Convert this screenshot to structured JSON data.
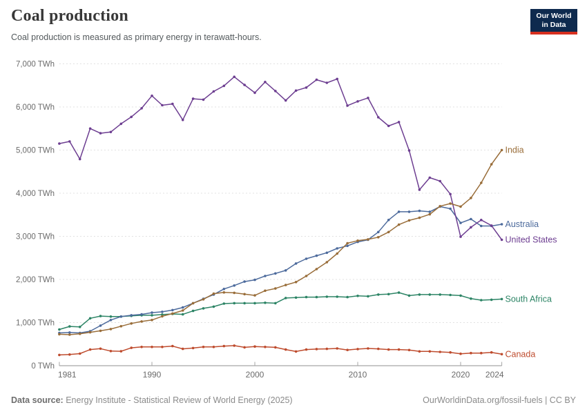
{
  "header": {
    "title": "Coal production",
    "subtitle": "Coal production is measured as primary energy in terawatt-hours.",
    "logo": {
      "line1": "Our World",
      "line2": "in Data",
      "bg_color": "#0e2a4e",
      "accent_color": "#d7301f"
    }
  },
  "footer": {
    "source_label": "Data source:",
    "source_text": " Energy Institute - Statistical Review of World Energy (2025)",
    "link_text": "OurWorldinData.org/fossil-fuels | CC BY"
  },
  "chart_data": {
    "type": "line",
    "unit_suffix": " TWh",
    "ylim": [
      0,
      7000
    ],
    "ytick_step": 1000,
    "xticks": [
      1981,
      1990,
      2000,
      2010,
      2020,
      2024
    ],
    "grid": "horizontal-dashed",
    "legend_position": "right-of-line-ends",
    "x": [
      1981,
      1982,
      1983,
      1984,
      1985,
      1986,
      1987,
      1988,
      1989,
      1990,
      1991,
      1992,
      1993,
      1994,
      1995,
      1996,
      1997,
      1998,
      1999,
      2000,
      2001,
      2002,
      2003,
      2004,
      2005,
      2006,
      2007,
      2008,
      2009,
      2010,
      2011,
      2012,
      2013,
      2014,
      2015,
      2016,
      2017,
      2018,
      2019,
      2020,
      2021,
      2022,
      2023,
      2024
    ],
    "series": [
      {
        "name": "Canada",
        "color": "#BE4B2D",
        "values": [
          250,
          260,
          280,
          375,
          395,
          340,
          335,
          415,
          435,
          435,
          435,
          455,
          390,
          410,
          435,
          435,
          455,
          465,
          425,
          445,
          435,
          425,
          375,
          330,
          375,
          385,
          390,
          400,
          365,
          385,
          400,
          390,
          375,
          375,
          363,
          331,
          331,
          320,
          309,
          277,
          293,
          293,
          309,
          267
        ]
      },
      {
        "name": "South Africa",
        "color": "#2C8465",
        "values": [
          840,
          910,
          900,
          1100,
          1150,
          1140,
          1140,
          1155,
          1170,
          1170,
          1185,
          1200,
          1190,
          1270,
          1330,
          1370,
          1440,
          1450,
          1450,
          1450,
          1460,
          1450,
          1570,
          1580,
          1590,
          1590,
          1600,
          1600,
          1590,
          1620,
          1610,
          1650,
          1660,
          1695,
          1625,
          1650,
          1650,
          1650,
          1640,
          1625,
          1555,
          1520,
          1530,
          1545
        ]
      },
      {
        "name": "Australia",
        "color": "#4C6A9C",
        "values": [
          760,
          770,
          760,
          800,
          930,
          1060,
          1140,
          1170,
          1190,
          1230,
          1250,
          1290,
          1350,
          1450,
          1550,
          1650,
          1780,
          1860,
          1950,
          1990,
          2080,
          2140,
          2210,
          2370,
          2480,
          2550,
          2620,
          2720,
          2780,
          2870,
          2920,
          3100,
          3380,
          3570,
          3570,
          3590,
          3570,
          3690,
          3640,
          3310,
          3400,
          3240,
          3240,
          3280
        ]
      },
      {
        "name": "United States",
        "color": "#6D3E91",
        "values": [
          5150,
          5200,
          4790,
          5500,
          5390,
          5420,
          5610,
          5770,
          5970,
          6260,
          6040,
          6070,
          5700,
          6190,
          6170,
          6360,
          6490,
          6700,
          6510,
          6330,
          6580,
          6370,
          6150,
          6380,
          6450,
          6630,
          6560,
          6650,
          6030,
          6130,
          6210,
          5760,
          5560,
          5650,
          4990,
          4080,
          4360,
          4280,
          3980,
          2990,
          3210,
          3380,
          3250,
          2920
        ]
      },
      {
        "name": "India",
        "color": "#996D39",
        "values": [
          730,
          720,
          740,
          775,
          810,
          850,
          915,
          980,
          1025,
          1060,
          1145,
          1210,
          1280,
          1450,
          1540,
          1670,
          1700,
          1690,
          1660,
          1630,
          1740,
          1790,
          1870,
          1940,
          2080,
          2240,
          2400,
          2600,
          2840,
          2900,
          2930,
          2980,
          3100,
          3270,
          3370,
          3430,
          3510,
          3700,
          3760,
          3690,
          3890,
          4240,
          4670,
          5000
        ]
      }
    ]
  }
}
